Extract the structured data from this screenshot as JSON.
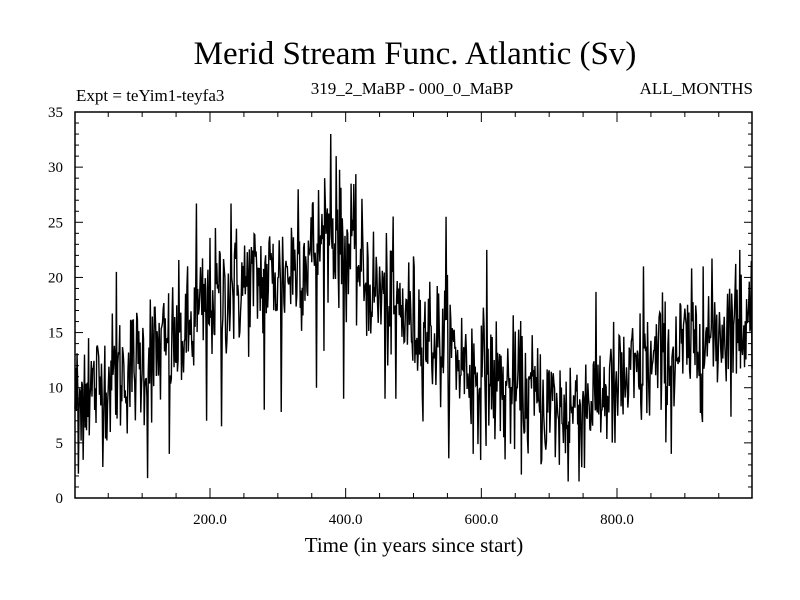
{
  "chart_data": {
    "type": "line",
    "title": "Merid Stream Func. Atlantic (Sv)",
    "subtitle_left": "Expt = teYim1-teyfa3",
    "subtitle_center": "319_2_MaBP - 000_0_MaBP",
    "subtitle_right": "ALL_MONTHS",
    "xlabel": "Time (in years since start)",
    "ylabel": "",
    "xlim": [
      1,
      999
    ],
    "ylim": [
      0,
      35
    ],
    "x_ticks": [
      200,
      400,
      600,
      800
    ],
    "x_tick_labels": [
      "200.0",
      "400.0",
      "600.0",
      "800.0"
    ],
    "y_ticks": [
      0,
      5,
      10,
      15,
      20,
      25,
      30,
      35
    ],
    "y_tick_labels": [
      "0",
      "5",
      "10",
      "15",
      "20",
      "25",
      "30",
      "35"
    ],
    "grid": false,
    "line_color": "#000000",
    "series": [
      {
        "name": "Merid Stream Func. Atlantic",
        "x_start": 1,
        "x_step": 1,
        "points": 999,
        "trend": [
          [
            1,
            9
          ],
          [
            60,
            11
          ],
          [
            120,
            13
          ],
          [
            170,
            15
          ],
          [
            200,
            18
          ],
          [
            260,
            19.5
          ],
          [
            320,
            20.5
          ],
          [
            360,
            23
          ],
          [
            380,
            24
          ],
          [
            410,
            22
          ],
          [
            440,
            19
          ],
          [
            480,
            17
          ],
          [
            520,
            15
          ],
          [
            560,
            13
          ],
          [
            600,
            11
          ],
          [
            640,
            10
          ],
          [
            680,
            9
          ],
          [
            720,
            8
          ],
          [
            760,
            9
          ],
          [
            800,
            10
          ],
          [
            840,
            11.5
          ],
          [
            880,
            13
          ],
          [
            920,
            14
          ],
          [
            960,
            15.5
          ],
          [
            999,
            16
          ]
        ],
        "noise_amplitude": 3.4,
        "spikes": [
          [
            6,
            2.2
          ],
          [
            10,
            5.2
          ],
          [
            15,
            13
          ],
          [
            21,
            14.5
          ],
          [
            62,
            20.5
          ],
          [
            108,
            1.8
          ],
          [
            112,
            18
          ],
          [
            140,
            4
          ],
          [
            180,
            26.7
          ],
          [
            195,
            7
          ],
          [
            217,
            6.5
          ],
          [
            231,
            26.7
          ],
          [
            280,
            8
          ],
          [
            305,
            7.8
          ],
          [
            320,
            24.5
          ],
          [
            330,
            28
          ],
          [
            357,
            10
          ],
          [
            369,
            29
          ],
          [
            378,
            33
          ],
          [
            386,
            31
          ],
          [
            397,
            9
          ],
          [
            408,
            28.5
          ],
          [
            458,
            9
          ],
          [
            474,
            9
          ],
          [
            489,
            18
          ],
          [
            548,
            25.5
          ],
          [
            588,
            4
          ],
          [
            608,
            22.5
          ],
          [
            635,
            3.5
          ],
          [
            694,
            5
          ],
          [
            715,
            3
          ],
          [
            728,
            1.5
          ],
          [
            744,
            1.5
          ],
          [
            797,
            5
          ],
          [
            839,
            21
          ],
          [
            880,
            4
          ],
          [
            927,
            21
          ],
          [
            981,
            22.5
          ],
          [
            998,
            21.5
          ]
        ]
      }
    ]
  }
}
